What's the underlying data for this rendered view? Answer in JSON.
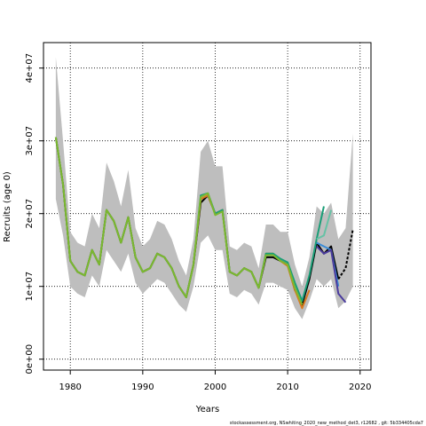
{
  "chart_data": {
    "type": "line",
    "xlabel": "Years",
    "ylabel": "Recruits (age 0)",
    "xlim": [
      1976.3,
      2021.5
    ],
    "ylim": [
      -1500000,
      43500000
    ],
    "xticks": [
      1980,
      1990,
      2000,
      2010,
      2020
    ],
    "yticks": [
      0,
      10000000,
      20000000,
      30000000,
      40000000
    ],
    "ytick_labels": [
      "0e+00",
      "1e+07",
      "2e+07",
      "3e+07",
      "4e+07"
    ],
    "grid": "dotted",
    "footnote": "stockassessment.org, NSwhiting_2020_new_method_det3, r12682 , git: 5b334405cda7",
    "band": {
      "color": "#bebebe",
      "x": [
        1978,
        1979,
        1980,
        1981,
        1982,
        1983,
        1984,
        1985,
        1986,
        1987,
        1988,
        1989,
        1990,
        1991,
        1992,
        1993,
        1994,
        1995,
        1996,
        1997,
        1998,
        1999,
        2000,
        2001,
        2002,
        2003,
        2004,
        2005,
        2006,
        2007,
        2008,
        2009,
        2010,
        2011,
        2012,
        2013,
        2014,
        2015,
        2016,
        2017,
        2018,
        2019
      ],
      "upper": [
        41500000,
        30000000,
        17500000,
        16000000,
        15500000,
        20000000,
        18000000,
        27000000,
        24500000,
        21000000,
        26000000,
        18000000,
        15500000,
        16500000,
        19000000,
        18500000,
        16500000,
        13500000,
        11500000,
        16500000,
        28500000,
        30000000,
        26500000,
        26500000,
        15500000,
        15000000,
        16000000,
        15500000,
        12500000,
        18500000,
        18500000,
        17500000,
        17500000,
        13000000,
        10000000,
        14000000,
        21000000,
        20000000,
        21500000,
        16500000,
        18000000,
        31000000
      ],
      "lower": [
        22000000,
        17000000,
        10000000,
        9000000,
        8500000,
        11500000,
        10000000,
        15000000,
        13500000,
        12000000,
        14500000,
        10500000,
        9000000,
        10000000,
        11000000,
        10500000,
        9000000,
        7500000,
        6500000,
        10000000,
        16000000,
        17000000,
        15000000,
        15000000,
        9000000,
        8500000,
        9500000,
        9000000,
        7500000,
        10500000,
        10500000,
        10000000,
        9500000,
        7000000,
        5500000,
        8000000,
        11000000,
        10000000,
        11000000,
        7000000,
        8000000,
        10000000
      ]
    },
    "series": [
      {
        "color": "#000000",
        "dash": "none",
        "x": [
          1978,
          1979,
          1980,
          1981,
          1982,
          1983,
          1984,
          1985,
          1986,
          1987,
          1988,
          1989,
          1990,
          1991,
          1992,
          1993,
          1994,
          1995,
          1996,
          1997,
          1998,
          1999,
          2000,
          2001,
          2002,
          2003,
          2004,
          2005,
          2006,
          2007,
          2008,
          2009,
          2010,
          2011,
          2012,
          2013,
          2014,
          2015,
          2016,
          2017
        ],
        "values": [
          30500000,
          24000000,
          13500000,
          12000000,
          11500000,
          15000000,
          13000000,
          20500000,
          19000000,
          16000000,
          19500000,
          14000000,
          12000000,
          12500000,
          14500000,
          14000000,
          12500000,
          10000000,
          8500000,
          13000000,
          21500000,
          22500000,
          20000000,
          20500000,
          12000000,
          11500000,
          12500000,
          12000000,
          9800000,
          14000000,
          14000000,
          13500000,
          13000000,
          9500000,
          7500000,
          11000000,
          16000000,
          14500000,
          15500000,
          11000000
        ]
      },
      {
        "color": "#000000",
        "dash": "3,2",
        "x": [
          2017,
          2018,
          2019
        ],
        "values": [
          11000000,
          12500000,
          17800000
        ]
      },
      {
        "color": "#d97a1e",
        "dash": "none",
        "x": [
          1978,
          1979,
          1980,
          1981,
          1982,
          1983,
          1984,
          1985,
          1986,
          1987,
          1988,
          1989,
          1990,
          1991,
          1992,
          1993,
          1994,
          1995,
          1996,
          1997,
          1998,
          1999,
          2000,
          2001,
          2002,
          2003,
          2004,
          2005,
          2006,
          2007,
          2008,
          2009,
          2010,
          2011,
          2012,
          2013
        ],
        "values": [
          30500000,
          24000000,
          13500000,
          12000000,
          11500000,
          15000000,
          13000000,
          20500000,
          19000000,
          16000000,
          19500000,
          14000000,
          12000000,
          12500000,
          14500000,
          14000000,
          12500000,
          10000000,
          8500000,
          13000000,
          22000000,
          22500000,
          20000000,
          20500000,
          12000000,
          11500000,
          12500000,
          12000000,
          9800000,
          14500000,
          14500000,
          13500000,
          12800000,
          9500000,
          7000000,
          9500000
        ]
      },
      {
        "color": "#1a9e77",
        "dash": "none",
        "x": [
          1978,
          1979,
          1980,
          1981,
          1982,
          1983,
          1984,
          1985,
          1986,
          1987,
          1988,
          1989,
          1990,
          1991,
          1992,
          1993,
          1994,
          1995,
          1996,
          1997,
          1998,
          1999,
          2000,
          2001,
          2002,
          2003,
          2004,
          2005,
          2006,
          2007,
          2008,
          2009,
          2010,
          2011,
          2012,
          2013,
          2014,
          2015
        ],
        "values": [
          30500000,
          24000000,
          13500000,
          12000000,
          11500000,
          15000000,
          13000000,
          20500000,
          19000000,
          16000000,
          19500000,
          14000000,
          12000000,
          12500000,
          14500000,
          14000000,
          12500000,
          10000000,
          8500000,
          13000000,
          22500000,
          22800000,
          20000000,
          20500000,
          12000000,
          11500000,
          12500000,
          12000000,
          9800000,
          14500000,
          14500000,
          13800000,
          13300000,
          10500000,
          8000000,
          11500000,
          16500000,
          21000000
        ]
      },
      {
        "color": "#66c2a5",
        "dash": "none",
        "x": [
          2014,
          2015,
          2016
        ],
        "values": [
          16500000,
          17000000,
          20500000
        ]
      },
      {
        "color": "#3b8bd6",
        "dash": "none",
        "x": [
          2014,
          2015,
          2016,
          2017
        ],
        "values": [
          16000000,
          15500000,
          15000000,
          10000000
        ]
      },
      {
        "color": "#4b3c9e",
        "dash": "none",
        "x": [
          2014,
          2015,
          2016,
          2017,
          2018
        ],
        "values": [
          15500000,
          14500000,
          15000000,
          9000000,
          7800000
        ]
      },
      {
        "color": "#7cb82f",
        "dash": "none",
        "x": [
          1978,
          1979,
          1980,
          1981,
          1982,
          1983,
          1984,
          1985,
          1986,
          1987,
          1988,
          1989,
          1990,
          1991,
          1992,
          1993,
          1994,
          1995,
          1996,
          1997,
          1998,
          1999,
          2000,
          2001,
          2002,
          2003,
          2004,
          2005,
          2006,
          2007,
          2008,
          2009,
          2010,
          2011,
          2012
        ],
        "values": [
          30500000,
          24000000,
          13500000,
          12000000,
          11500000,
          15000000,
          13000000,
          20500000,
          19000000,
          16000000,
          19500000,
          14000000,
          12000000,
          12500000,
          14500000,
          14000000,
          12500000,
          10000000,
          8500000,
          13000000,
          22300000,
          22800000,
          19800000,
          20300000,
          12000000,
          11500000,
          12500000,
          12000000,
          9800000,
          14300000,
          14300000,
          13500000,
          13000000,
          9800000,
          7500000
        ]
      }
    ]
  }
}
